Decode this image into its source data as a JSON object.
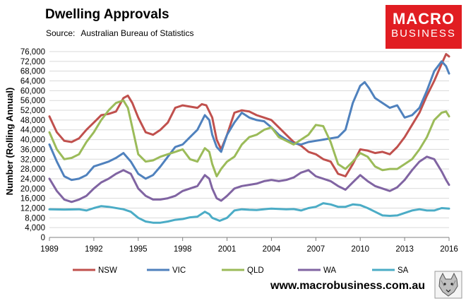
{
  "title": "Dwelling Approvals",
  "source_label": "Source:",
  "source_value": "Australian Bureau of Statistics",
  "logo": {
    "line1": "MACRO",
    "line2": "BUSINESS",
    "color": "#e11d22"
  },
  "website": "www.macrobusiness.com.au",
  "chart_data": {
    "type": "line",
    "ylabel": "Number (Rolling Annual)",
    "xlabel": "",
    "ylim": [
      0,
      76000
    ],
    "xlim": [
      1989,
      2016
    ],
    "yticks": [
      "0",
      "4,000",
      "8,000",
      "12,000",
      "16,000",
      "20,000",
      "24,000",
      "28,000",
      "32,000",
      "36,000",
      "40,000",
      "44,000",
      "48,000",
      "52,000",
      "56,000",
      "60,000",
      "64,000",
      "68,000",
      "72,000",
      "76,000"
    ],
    "ytick_values": [
      0,
      4000,
      8000,
      12000,
      16000,
      20000,
      24000,
      28000,
      32000,
      36000,
      40000,
      44000,
      48000,
      52000,
      56000,
      60000,
      64000,
      68000,
      72000,
      76000
    ],
    "xticks": [
      "1989",
      "1992",
      "1995",
      "1998",
      "2001",
      "2004",
      "2007",
      "2010",
      "2013",
      "2016"
    ],
    "xtick_values": [
      1989,
      1992,
      1995,
      1998,
      2001,
      2004,
      2007,
      2010,
      2013,
      2016
    ],
    "grid": true,
    "legend": "bottom",
    "series": [
      {
        "name": "NSW",
        "color": "#c0504d",
        "points": [
          [
            1989,
            49500
          ],
          [
            1989.5,
            43000
          ],
          [
            1990,
            39500
          ],
          [
            1990.5,
            39000
          ],
          [
            1991,
            40500
          ],
          [
            1991.5,
            44000
          ],
          [
            1992,
            47000
          ],
          [
            1992.5,
            50000
          ],
          [
            1993,
            50500
          ],
          [
            1993.5,
            51500
          ],
          [
            1994,
            57000
          ],
          [
            1994.3,
            58000
          ],
          [
            1994.6,
            55000
          ],
          [
            1995,
            49000
          ],
          [
            1995.5,
            43000
          ],
          [
            1996,
            42000
          ],
          [
            1996.5,
            44000
          ],
          [
            1997,
            47000
          ],
          [
            1997.5,
            53000
          ],
          [
            1998,
            54000
          ],
          [
            1998.5,
            53500
          ],
          [
            1999,
            53000
          ],
          [
            1999.3,
            54500
          ],
          [
            1999.6,
            54000
          ],
          [
            2000,
            49000
          ],
          [
            2000.3,
            40000
          ],
          [
            2000.6,
            36000
          ],
          [
            2001,
            42000
          ],
          [
            2001.5,
            51000
          ],
          [
            2002,
            52000
          ],
          [
            2002.5,
            51500
          ],
          [
            2003,
            50000
          ],
          [
            2003.5,
            49000
          ],
          [
            2004,
            48000
          ],
          [
            2004.5,
            45000
          ],
          [
            2005,
            42000
          ],
          [
            2005.5,
            39000
          ],
          [
            2006,
            37500
          ],
          [
            2006.5,
            35000
          ],
          [
            2007,
            34000
          ],
          [
            2007.5,
            32000
          ],
          [
            2008,
            31000
          ],
          [
            2008.5,
            26000
          ],
          [
            2009,
            25000
          ],
          [
            2009.5,
            30000
          ],
          [
            2010,
            36000
          ],
          [
            2010.5,
            35500
          ],
          [
            2011,
            34500
          ],
          [
            2011.5,
            35000
          ],
          [
            2012,
            34000
          ],
          [
            2012.5,
            37000
          ],
          [
            2013,
            41000
          ],
          [
            2013.5,
            46000
          ],
          [
            2014,
            51000
          ],
          [
            2014.5,
            58000
          ],
          [
            2015,
            64000
          ],
          [
            2015.5,
            71000
          ],
          [
            2015.8,
            75000
          ],
          [
            2016,
            74000
          ]
        ]
      },
      {
        "name": "VIC",
        "color": "#4f81bd",
        "points": [
          [
            1989,
            38000
          ],
          [
            1989.5,
            31000
          ],
          [
            1990,
            25000
          ],
          [
            1990.5,
            23500
          ],
          [
            1991,
            24000
          ],
          [
            1991.5,
            25500
          ],
          [
            1992,
            29000
          ],
          [
            1992.5,
            30000
          ],
          [
            1993,
            31000
          ],
          [
            1993.5,
            32500
          ],
          [
            1994,
            34500
          ],
          [
            1994.5,
            31000
          ],
          [
            1995,
            26000
          ],
          [
            1995.5,
            24000
          ],
          [
            1996,
            25500
          ],
          [
            1996.5,
            29000
          ],
          [
            1997,
            33000
          ],
          [
            1997.5,
            37000
          ],
          [
            1998,
            38000
          ],
          [
            1998.5,
            41000
          ],
          [
            1999,
            44000
          ],
          [
            1999.5,
            50000
          ],
          [
            1999.8,
            48000
          ],
          [
            2000,
            42000
          ],
          [
            2000.3,
            37000
          ],
          [
            2000.6,
            35000
          ],
          [
            2001,
            42000
          ],
          [
            2001.5,
            47000
          ],
          [
            2002,
            51000
          ],
          [
            2002.5,
            49000
          ],
          [
            2003,
            48000
          ],
          [
            2003.5,
            47500
          ],
          [
            2004,
            45000
          ],
          [
            2004.5,
            42000
          ],
          [
            2005,
            40000
          ],
          [
            2005.5,
            38500
          ],
          [
            2006,
            38000
          ],
          [
            2006.5,
            39000
          ],
          [
            2007,
            39500
          ],
          [
            2007.5,
            40000
          ],
          [
            2008,
            40500
          ],
          [
            2008.5,
            41000
          ],
          [
            2009,
            44000
          ],
          [
            2009.5,
            55000
          ],
          [
            2010,
            62000
          ],
          [
            2010.3,
            63500
          ],
          [
            2010.6,
            61000
          ],
          [
            2011,
            57000
          ],
          [
            2011.5,
            55000
          ],
          [
            2012,
            53000
          ],
          [
            2012.5,
            54000
          ],
          [
            2013,
            49000
          ],
          [
            2013.5,
            50000
          ],
          [
            2014,
            53000
          ],
          [
            2014.5,
            60000
          ],
          [
            2015,
            68000
          ],
          [
            2015.5,
            72000
          ],
          [
            2015.8,
            70000
          ],
          [
            2016,
            67000
          ]
        ]
      },
      {
        "name": "QLD",
        "color": "#9bbb59",
        "points": [
          [
            1989,
            43000
          ],
          [
            1989.5,
            36000
          ],
          [
            1990,
            32000
          ],
          [
            1990.5,
            32500
          ],
          [
            1991,
            34000
          ],
          [
            1991.5,
            39000
          ],
          [
            1992,
            43000
          ],
          [
            1992.5,
            48000
          ],
          [
            1993,
            52000
          ],
          [
            1993.5,
            55000
          ],
          [
            1994,
            56000
          ],
          [
            1994.3,
            53000
          ],
          [
            1994.6,
            45000
          ],
          [
            1995,
            34000
          ],
          [
            1995.5,
            31000
          ],
          [
            1996,
            31500
          ],
          [
            1996.5,
            33000
          ],
          [
            1997,
            34000
          ],
          [
            1997.5,
            35000
          ],
          [
            1998,
            36000
          ],
          [
            1998.5,
            32000
          ],
          [
            1999,
            31000
          ],
          [
            1999.5,
            36500
          ],
          [
            1999.8,
            35000
          ],
          [
            2000,
            30000
          ],
          [
            2000.3,
            25000
          ],
          [
            2000.6,
            28000
          ],
          [
            2001,
            31000
          ],
          [
            2001.5,
            33000
          ],
          [
            2002,
            38000
          ],
          [
            2002.5,
            41000
          ],
          [
            2003,
            42000
          ],
          [
            2003.5,
            44000
          ],
          [
            2004,
            45000
          ],
          [
            2004.5,
            41000
          ],
          [
            2005,
            39500
          ],
          [
            2005.5,
            38000
          ],
          [
            2006,
            40000
          ],
          [
            2006.5,
            42000
          ],
          [
            2007,
            46000
          ],
          [
            2007.5,
            45500
          ],
          [
            2008,
            39000
          ],
          [
            2008.5,
            30000
          ],
          [
            2009,
            28000
          ],
          [
            2009.5,
            31000
          ],
          [
            2010,
            34500
          ],
          [
            2010.5,
            33000
          ],
          [
            2011,
            29000
          ],
          [
            2011.5,
            27500
          ],
          [
            2012,
            28000
          ],
          [
            2012.5,
            28000
          ],
          [
            2013,
            30000
          ],
          [
            2013.5,
            32000
          ],
          [
            2014,
            36000
          ],
          [
            2014.5,
            41000
          ],
          [
            2015,
            48000
          ],
          [
            2015.5,
            51000
          ],
          [
            2015.8,
            51500
          ],
          [
            2016,
            49500
          ]
        ]
      },
      {
        "name": "WA",
        "color": "#8064a2",
        "points": [
          [
            1989,
            24000
          ],
          [
            1989.5,
            19000
          ],
          [
            1990,
            15500
          ],
          [
            1990.5,
            14500
          ],
          [
            1991,
            15500
          ],
          [
            1991.5,
            17000
          ],
          [
            1992,
            20000
          ],
          [
            1992.5,
            22500
          ],
          [
            1993,
            24000
          ],
          [
            1993.5,
            26000
          ],
          [
            1994,
            27500
          ],
          [
            1994.5,
            26000
          ],
          [
            1995,
            20000
          ],
          [
            1995.5,
            17000
          ],
          [
            1996,
            15500
          ],
          [
            1996.5,
            15500
          ],
          [
            1997,
            16000
          ],
          [
            1997.5,
            17000
          ],
          [
            1998,
            19000
          ],
          [
            1998.5,
            20000
          ],
          [
            1999,
            21000
          ],
          [
            1999.5,
            25500
          ],
          [
            1999.8,
            24000
          ],
          [
            2000,
            20000
          ],
          [
            2000.3,
            16000
          ],
          [
            2000.6,
            15000
          ],
          [
            2001,
            17000
          ],
          [
            2001.5,
            20000
          ],
          [
            2002,
            21000
          ],
          [
            2002.5,
            21500
          ],
          [
            2003,
            22000
          ],
          [
            2003.5,
            23000
          ],
          [
            2004,
            23500
          ],
          [
            2004.5,
            23000
          ],
          [
            2005,
            23500
          ],
          [
            2005.5,
            24500
          ],
          [
            2006,
            26500
          ],
          [
            2006.5,
            27500
          ],
          [
            2007,
            25000
          ],
          [
            2007.5,
            24000
          ],
          [
            2008,
            23000
          ],
          [
            2008.5,
            21000
          ],
          [
            2009,
            19500
          ],
          [
            2009.5,
            22500
          ],
          [
            2010,
            25500
          ],
          [
            2010.5,
            23000
          ],
          [
            2011,
            21000
          ],
          [
            2011.5,
            20000
          ],
          [
            2012,
            19000
          ],
          [
            2012.5,
            20500
          ],
          [
            2013,
            23500
          ],
          [
            2013.5,
            27500
          ],
          [
            2014,
            31000
          ],
          [
            2014.5,
            33000
          ],
          [
            2015,
            32000
          ],
          [
            2015.5,
            27000
          ],
          [
            2015.8,
            23500
          ],
          [
            2016,
            21500
          ]
        ]
      },
      {
        "name": "SA",
        "color": "#4bacc6",
        "points": [
          [
            1989,
            11500
          ],
          [
            1990,
            11400
          ],
          [
            1991,
            11500
          ],
          [
            1991.5,
            11000
          ],
          [
            1992,
            12000
          ],
          [
            1992.5,
            12800
          ],
          [
            1993,
            12500
          ],
          [
            1994,
            11500
          ],
          [
            1994.5,
            10500
          ],
          [
            1995,
            8000
          ],
          [
            1995.5,
            6500
          ],
          [
            1996,
            6000
          ],
          [
            1996.5,
            6000
          ],
          [
            1997,
            6500
          ],
          [
            1997.5,
            7200
          ],
          [
            1998,
            7500
          ],
          [
            1998.5,
            8200
          ],
          [
            1999,
            8500
          ],
          [
            1999.5,
            10500
          ],
          [
            1999.8,
            9500
          ],
          [
            2000,
            8000
          ],
          [
            2000.5,
            6800
          ],
          [
            2001,
            8000
          ],
          [
            2001.5,
            11000
          ],
          [
            2002,
            11500
          ],
          [
            2002.5,
            11300
          ],
          [
            2003,
            11200
          ],
          [
            2004,
            11800
          ],
          [
            2005,
            11500
          ],
          [
            2005.5,
            11600
          ],
          [
            2006,
            11000
          ],
          [
            2006.5,
            12000
          ],
          [
            2007,
            12500
          ],
          [
            2007.5,
            14000
          ],
          [
            2008,
            13500
          ],
          [
            2008.5,
            12500
          ],
          [
            2009,
            12500
          ],
          [
            2009.5,
            13500
          ],
          [
            2010,
            13200
          ],
          [
            2010.5,
            12000
          ],
          [
            2011,
            10500
          ],
          [
            2011.5,
            9000
          ],
          [
            2012,
            8800
          ],
          [
            2012.5,
            9000
          ],
          [
            2013,
            10000
          ],
          [
            2013.5,
            11000
          ],
          [
            2014,
            11500
          ],
          [
            2014.5,
            11000
          ],
          [
            2015,
            11000
          ],
          [
            2015.5,
            12000
          ],
          [
            2016,
            11800
          ]
        ]
      }
    ]
  }
}
